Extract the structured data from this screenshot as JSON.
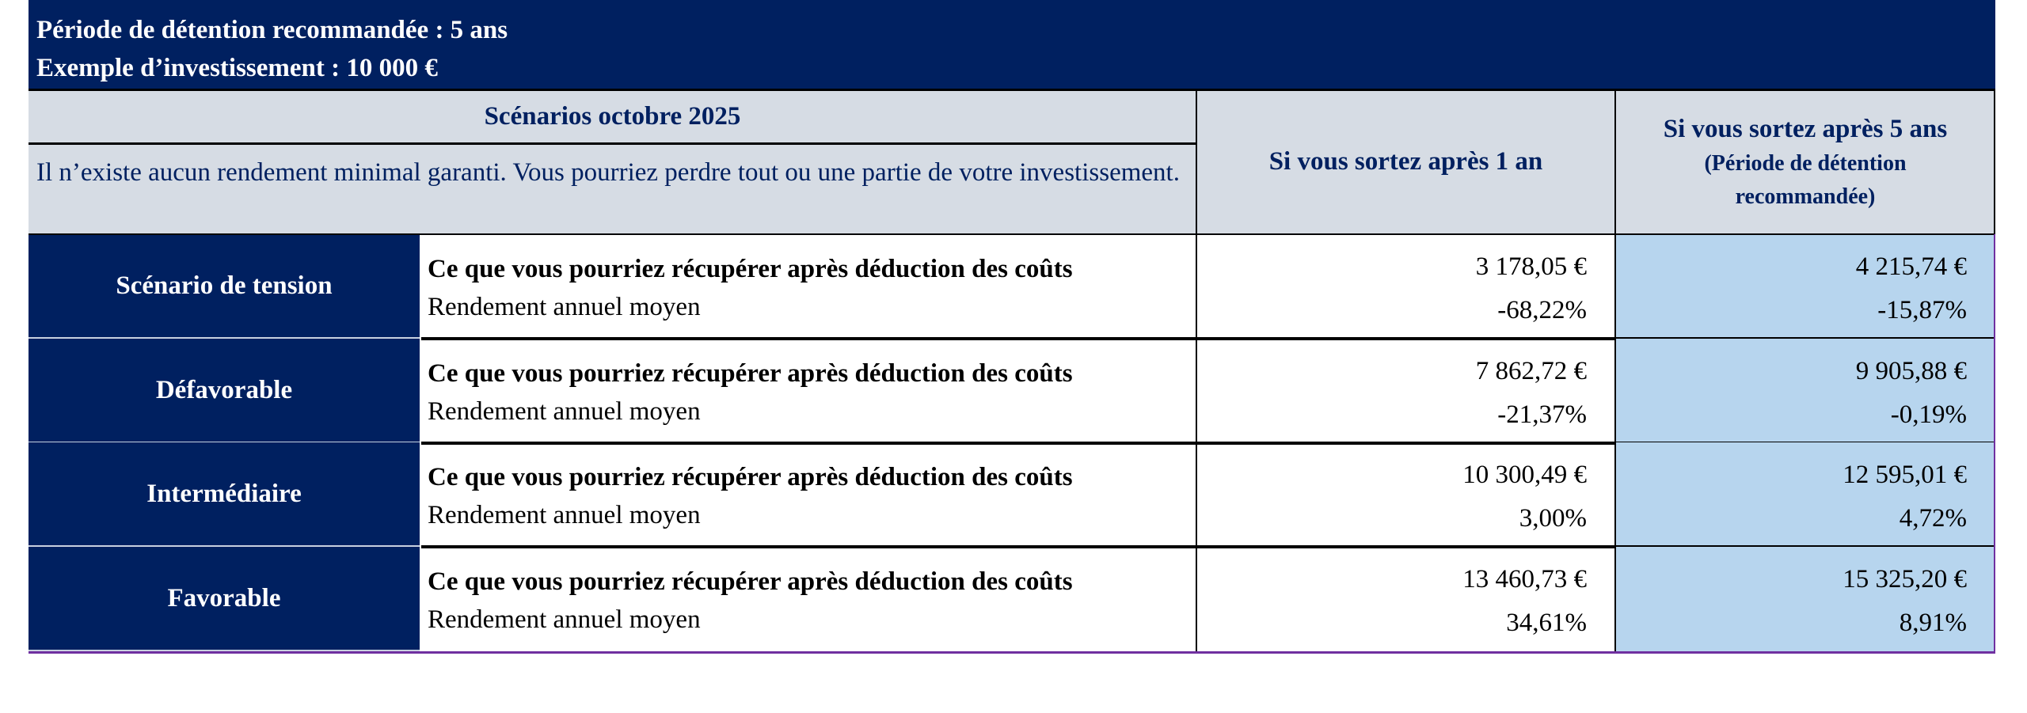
{
  "header": {
    "holding_period": "Période de détention recommandée : 5 ans",
    "investment_example": "Exemple d’investissement : 10 000 €"
  },
  "table": {
    "scenarios_title": "Scénarios octobre 2025",
    "warning": "Il n’existe aucun rendement minimal garanti. Vous pourriez perdre tout ou une partie de votre investissement.",
    "col1_header": "Si vous sortez après 1 an",
    "col2_header_line1": "Si vous sortez après 5 ans",
    "col2_header_line2": "(Période de détention recommandée)",
    "rows": [
      {
        "label": "Scénario de tension",
        "desc_bold": "Ce que vous pourriez récupérer après déduction des coûts",
        "desc_normal": " Rendement annuel moyen",
        "y1_amount": "3 178,05 €",
        "y1_return": "-68,22%",
        "y5_amount": "4 215,74 €",
        "y5_return": "-15,87%"
      },
      {
        "label": "Défavorable",
        "desc_bold": "Ce que vous pourriez récupérer après déduction des coûts",
        "desc_normal": " Rendement annuel moyen",
        "y1_amount": "7 862,72 €",
        "y1_return": "-21,37%",
        "y5_amount": "9 905,88 €",
        "y5_return": "-0,19%"
      },
      {
        "label": "Intermédiaire",
        "desc_bold": "Ce que vous pourriez récupérer après déduction des coûts",
        "desc_normal": " Rendement annuel moyen",
        "y1_amount": "10 300,49 €",
        "y1_return": "3,00%",
        "y5_amount": "12 595,01 €",
        "y5_return": "4,72%"
      },
      {
        "label": "Favorable",
        "desc_bold": "Ce que vous pourriez récupérer après déduction des coûts",
        "desc_normal": " Rendement annuel moyen",
        "y1_amount": "13 460,73 €",
        "y1_return": "34,61%",
        "y5_amount": "15 325,20 €",
        "y5_return": "8,91%"
      }
    ]
  },
  "colors": {
    "navy": "#002060",
    "header_gray": "#d6dce4",
    "highlight_blue": "#b7d5ee",
    "accent_purple": "#7030a0"
  }
}
